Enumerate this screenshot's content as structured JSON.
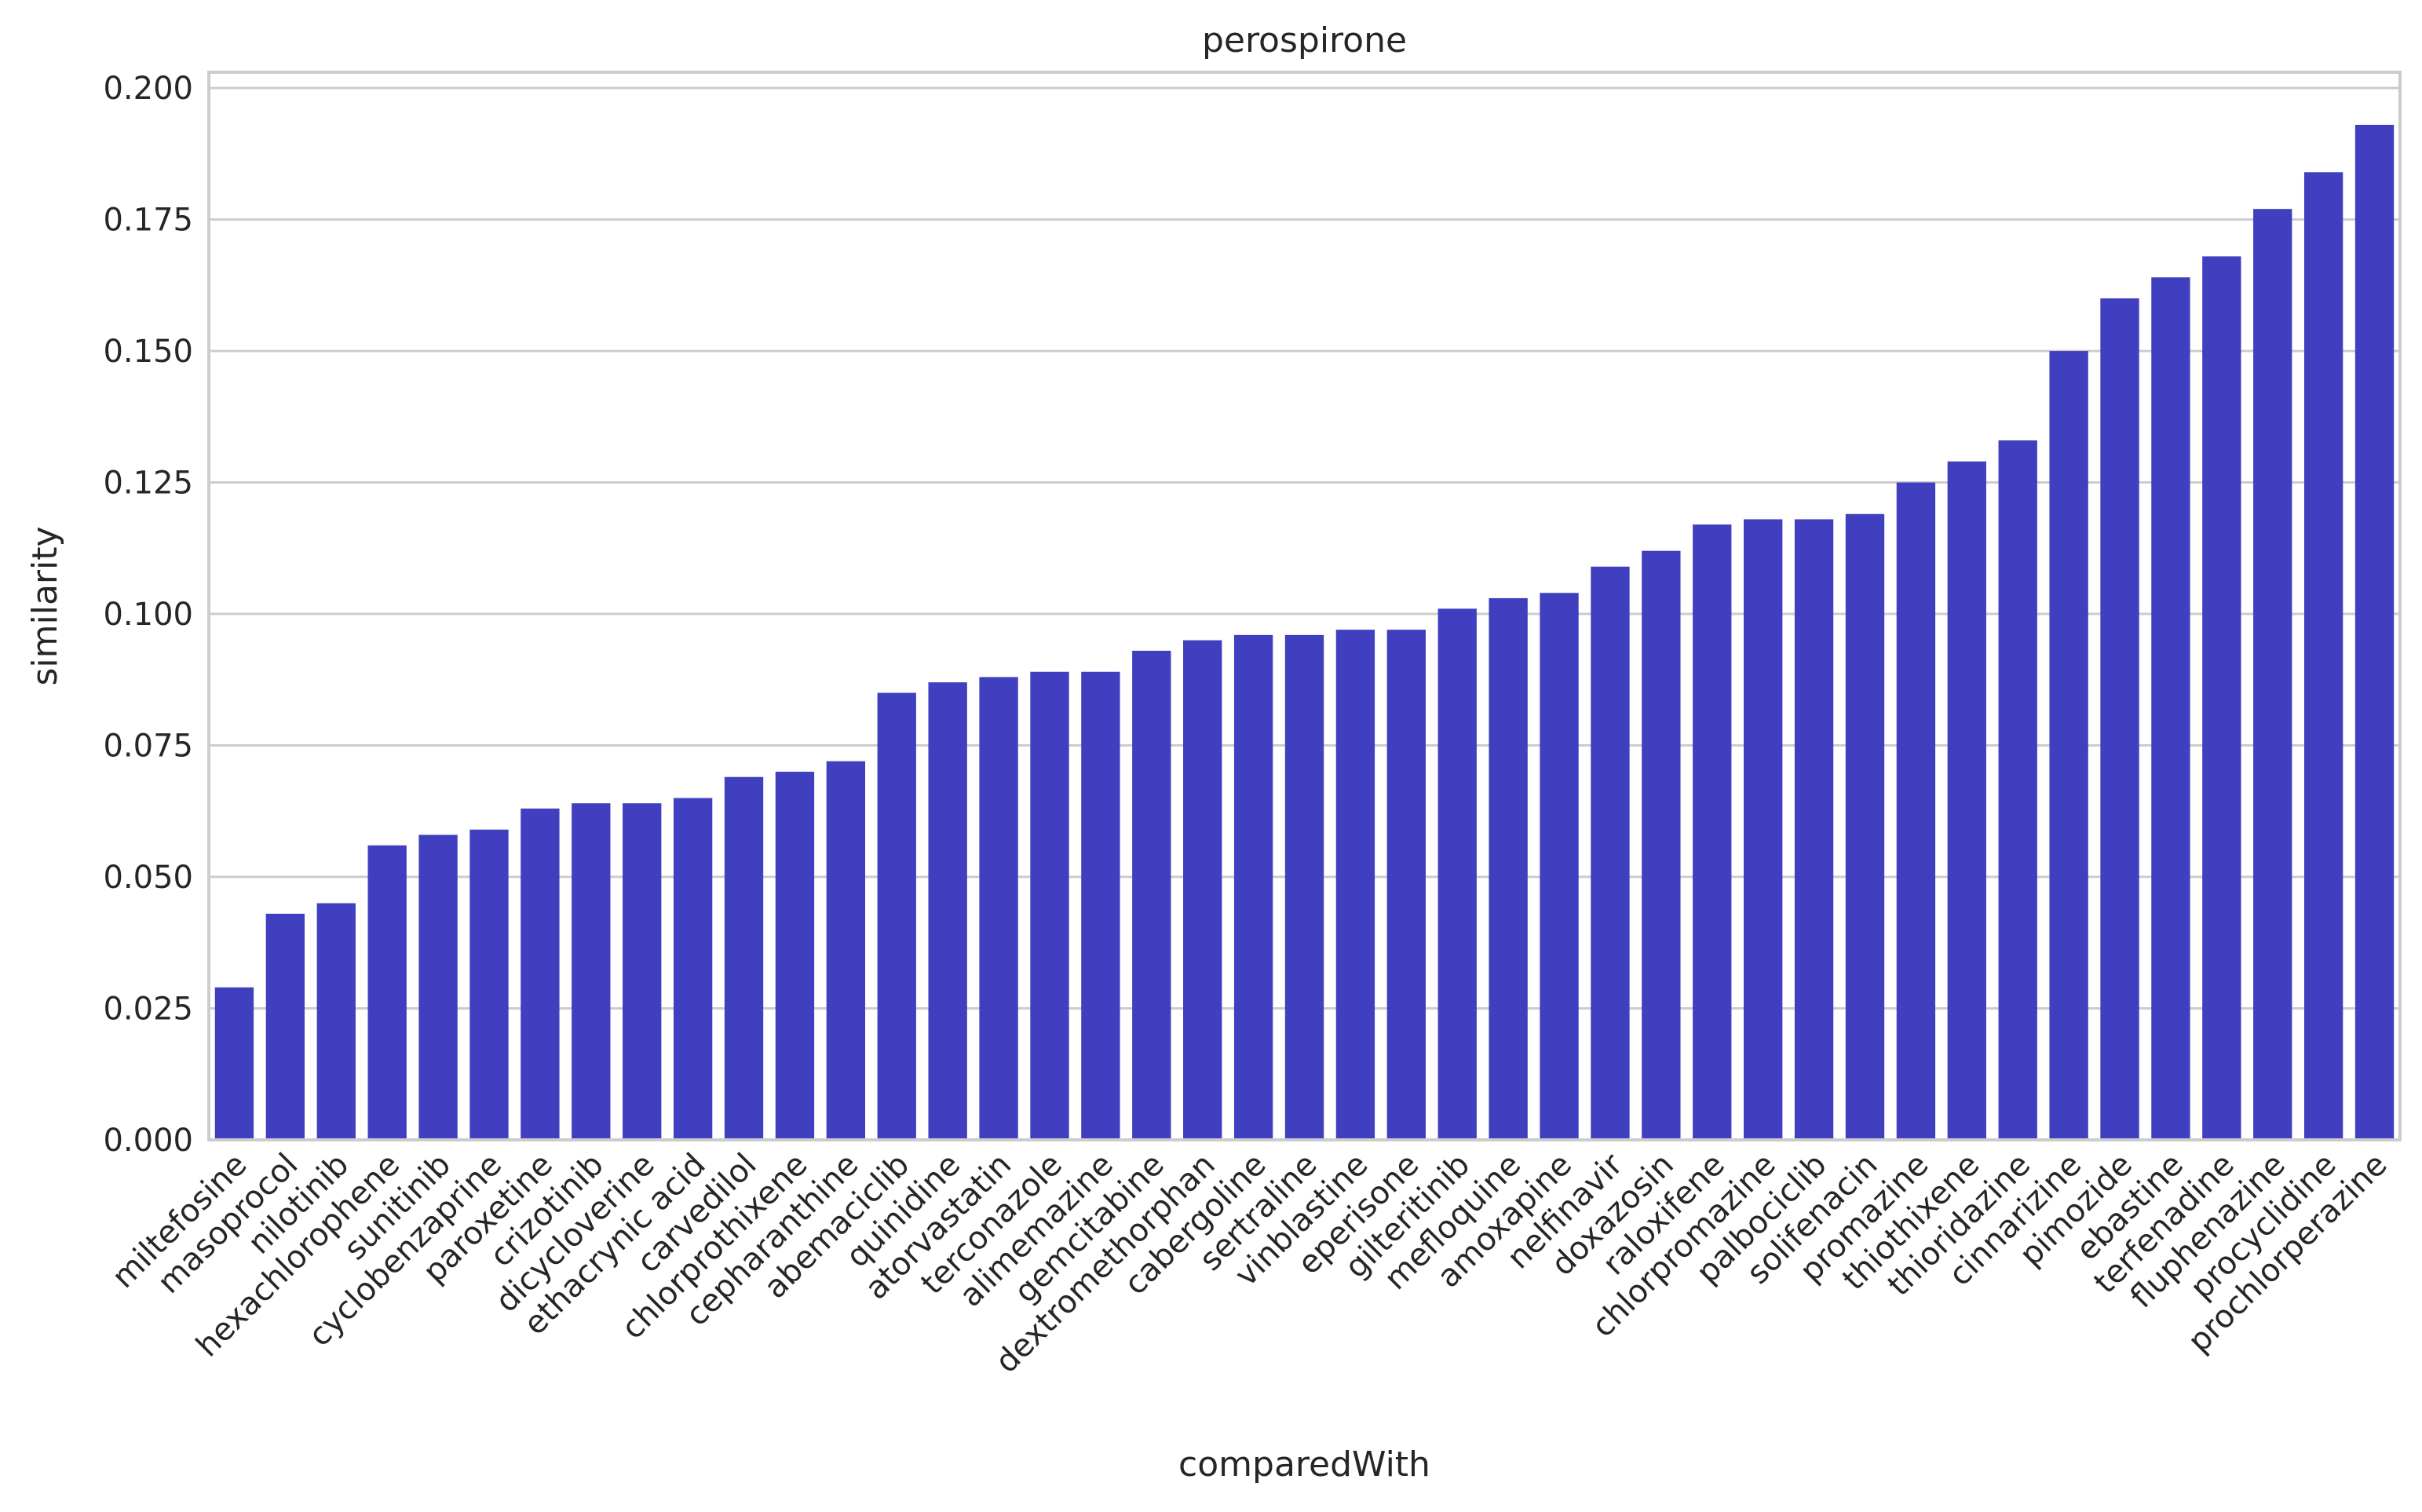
{
  "chart_data": {
    "type": "bar",
    "title": "perospirone",
    "xlabel": "comparedWith",
    "ylabel": "similarity",
    "ylim": [
      0,
      0.203
    ],
    "yticks": [
      "0.000",
      "0.025",
      "0.050",
      "0.075",
      "0.100",
      "0.125",
      "0.150",
      "0.175",
      "0.200"
    ],
    "grid": "horizontal",
    "bar_color": "#3f3fbf",
    "categories": [
      "miltefosine",
      "masoprocol",
      "nilotinib",
      "hexachlorophene",
      "sunitinib",
      "cyclobenzaprine",
      "paroxetine",
      "crizotinib",
      "dicycloverine",
      "ethacrynic acid",
      "carvedilol",
      "chlorprothixene",
      "cepharanthine",
      "abemaciclib",
      "quinidine",
      "atorvastatin",
      "terconazole",
      "alimemazine",
      "gemcitabine",
      "dextromethorphan",
      "cabergoline",
      "sertraline",
      "vinblastine",
      "eperisone",
      "gilteritinib",
      "mefloquine",
      "amoxapine",
      "nelfinavir",
      "doxazosin",
      "raloxifene",
      "chlorpromazine",
      "palbociclib",
      "solifenacin",
      "promazine",
      "thiothixene",
      "thioridazine",
      "cinnarizine",
      "pimozide",
      "ebastine",
      "terfenadine",
      "fluphenazine",
      "procyclidine",
      "prochlorperazine"
    ],
    "values": [
      0.029,
      0.043,
      0.045,
      0.056,
      0.058,
      0.059,
      0.063,
      0.064,
      0.064,
      0.065,
      0.069,
      0.07,
      0.072,
      0.085,
      0.087,
      0.088,
      0.089,
      0.089,
      0.093,
      0.095,
      0.096,
      0.096,
      0.097,
      0.097,
      0.101,
      0.103,
      0.104,
      0.109,
      0.112,
      0.117,
      0.118,
      0.118,
      0.119,
      0.125,
      0.129,
      0.133,
      0.15,
      0.16,
      0.164,
      0.168,
      0.177,
      0.184,
      0.193
    ]
  }
}
